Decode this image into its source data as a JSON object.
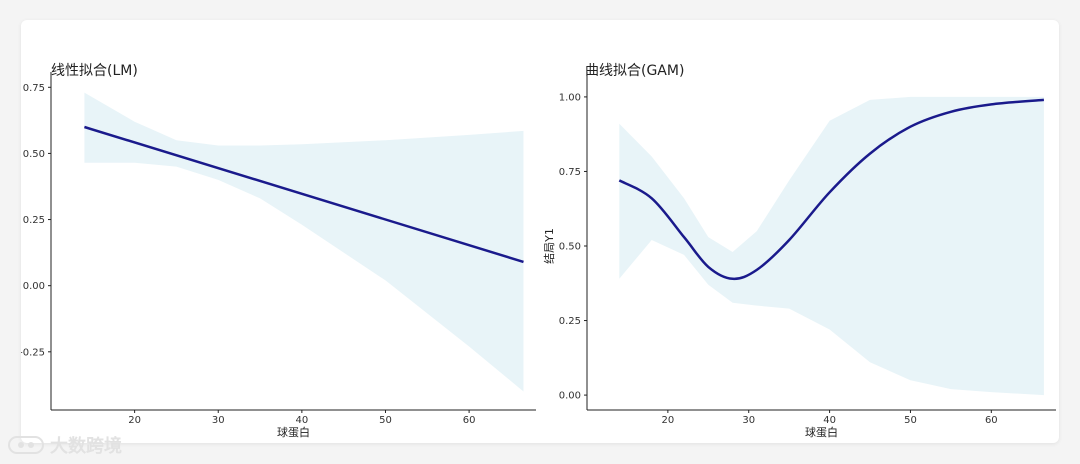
{
  "watermark": {
    "text": "大数跨境"
  },
  "chart_data": [
    {
      "type": "line",
      "title": "线性拟合(LM)",
      "xlabel": "球蛋白",
      "ylabel": "",
      "xlim": [
        10,
        68
      ],
      "ylim": [
        -0.47,
        0.77
      ],
      "xticks": [
        20,
        30,
        40,
        50,
        60
      ],
      "xtick_labels": [
        "20",
        "30",
        "40",
        "50",
        "60"
      ],
      "yticks": [
        0.75,
        0.5,
        0.25,
        0.0,
        -0.25
      ],
      "ytick_labels": [
        "0.75",
        "0.50",
        "0.25",
        "0.00",
        "-0.25"
      ],
      "line_color": "#1a1a8c",
      "band_color": "#e8f4f8",
      "series": [
        {
          "x": [
            14,
            66.5
          ],
          "y": [
            0.6,
            0.09
          ],
          "band_x": [
            14,
            20,
            25,
            30,
            35,
            40,
            50,
            60,
            66.5
          ],
          "band_upper": [
            0.73,
            0.62,
            0.55,
            0.53,
            0.53,
            0.535,
            0.55,
            0.57,
            0.585
          ],
          "band_lower": [
            0.465,
            0.465,
            0.45,
            0.4,
            0.33,
            0.23,
            0.02,
            -0.23,
            -0.4
          ]
        }
      ]
    },
    {
      "type": "line",
      "title": "曲线拟合(GAM)",
      "xlabel": "球蛋白",
      "ylabel": "结局Y1",
      "xlim": [
        10,
        68
      ],
      "ylim": [
        -0.05,
        1.05
      ],
      "xticks": [
        20,
        30,
        40,
        50,
        60
      ],
      "xtick_labels": [
        "20",
        "30",
        "40",
        "50",
        "60"
      ],
      "yticks": [
        1.0,
        0.75,
        0.5,
        0.25,
        0.0
      ],
      "ytick_labels": [
        "1.00",
        "0.75",
        "0.50",
        "0.25",
        "0.00"
      ],
      "line_color": "#1a1a8c",
      "band_color": "#e8f4f8",
      "series": [
        {
          "x": [
            14,
            18,
            22,
            25,
            28,
            31,
            35,
            40,
            45,
            50,
            55,
            60,
            66.5
          ],
          "y": [
            0.72,
            0.66,
            0.53,
            0.43,
            0.39,
            0.42,
            0.52,
            0.68,
            0.81,
            0.9,
            0.95,
            0.975,
            0.99
          ],
          "band_x": [
            14,
            18,
            22,
            25,
            28,
            31,
            35,
            40,
            45,
            50,
            55,
            60,
            66.5
          ],
          "band_upper": [
            0.91,
            0.8,
            0.66,
            0.53,
            0.48,
            0.55,
            0.72,
            0.92,
            0.99,
            1.0,
            1.0,
            1.0,
            1.0
          ],
          "band_lower": [
            0.39,
            0.52,
            0.47,
            0.37,
            0.31,
            0.3,
            0.29,
            0.22,
            0.11,
            0.05,
            0.02,
            0.01,
            0.0
          ]
        }
      ]
    }
  ]
}
